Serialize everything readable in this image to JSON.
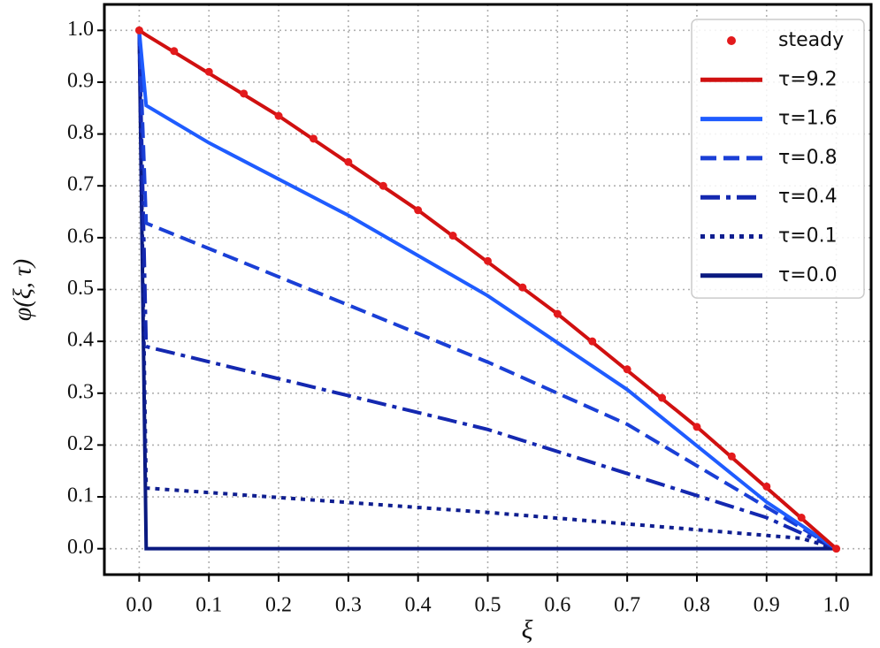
{
  "chart_data": {
    "type": "line",
    "xlabel": "ξ",
    "ylabel": "φ(ξ, τ)",
    "xlim": [
      -0.05,
      1.05
    ],
    "ylim": [
      -0.05,
      1.05
    ],
    "xticks": [
      {
        "value": 0,
        "label": "0.0"
      },
      0.1,
      0.2,
      0.3,
      0.4,
      0.5,
      0.6,
      0.7,
      0.8,
      0.9,
      {
        "value": 1,
        "label": "1.0"
      }
    ],
    "yticks": [
      {
        "value": 0,
        "label": "0.0"
      },
      0.1,
      0.2,
      0.3,
      0.4,
      0.5,
      0.6,
      0.7,
      0.8,
      0.9,
      {
        "value": 1,
        "label": "1.0"
      }
    ],
    "grid": true,
    "legend": "upper right",
    "series": [
      {
        "name": "steady",
        "color": "#e31a1c",
        "style": "dots",
        "x": [
          0,
          0.05,
          0.1,
          0.15,
          0.2,
          0.25,
          0.3,
          0.35,
          0.4,
          0.45,
          0.5,
          0.55,
          0.6,
          0.65,
          0.7,
          0.75,
          0.8,
          0.85,
          0.9,
          0.95,
          1
        ],
        "values": [
          1,
          0.96,
          0.92,
          0.878,
          0.835,
          0.791,
          0.746,
          0.7,
          0.653,
          0.604,
          0.555,
          0.504,
          0.453,
          0.4,
          0.346,
          0.291,
          0.235,
          0.178,
          0.12,
          0.06,
          0
        ]
      },
      {
        "name": "τ=9.2",
        "color": "#d01010",
        "style": "solid",
        "x": [
          0,
          0.01,
          0.2,
          0.4,
          0.6,
          0.8,
          1
        ],
        "values": [
          1,
          0.991,
          0.835,
          0.653,
          0.453,
          0.235,
          0
        ]
      },
      {
        "name": "τ=1.6",
        "color": "#1f5cff",
        "style": "solid",
        "x": [
          0,
          0.01,
          0.1,
          0.3,
          0.5,
          0.7,
          0.9,
          1
        ],
        "values": [
          1,
          0.855,
          0.783,
          0.643,
          0.488,
          0.307,
          0.09,
          0
        ]
      },
      {
        "name": "τ=0.8",
        "color": "#1a3fd6",
        "style": "dashed",
        "x": [
          0,
          0.01,
          0.3,
          0.5,
          0.7,
          0.9,
          1
        ],
        "values": [
          1,
          0.628,
          0.47,
          0.36,
          0.24,
          0.08,
          0
        ]
      },
      {
        "name": "τ=0.4",
        "color": "#1428b0",
        "style": "dashdot",
        "x": [
          0,
          0.01,
          0.5,
          0.9,
          1
        ],
        "values": [
          1,
          0.39,
          0.23,
          0.06,
          0
        ]
      },
      {
        "name": "τ=0.1",
        "color": "#0f1e90",
        "style": "dotted",
        "x": [
          0,
          0.01,
          0.5,
          0.95,
          1
        ],
        "values": [
          1,
          0.117,
          0.07,
          0.02,
          0
        ]
      },
      {
        "name": "τ=0.0",
        "color": "#0a1a80",
        "style": "solid",
        "x": [
          0,
          0.01,
          1
        ],
        "values": [
          1,
          0,
          0
        ]
      }
    ]
  }
}
